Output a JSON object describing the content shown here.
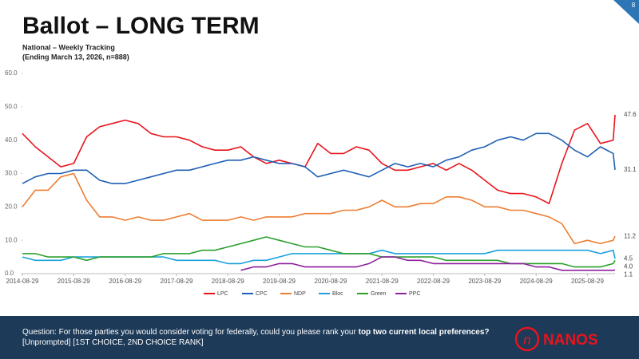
{
  "page_number": "8",
  "footer": {
    "question_start": "Question: For those parties you would consider voting for federally, could you please rank your ",
    "question_bold": "top two current local preferences?",
    "question_end": " [Unprompted] [1ST CHOICE, 2ND CHOICE RANK]",
    "logo": "NANOS"
  },
  "chart_data": {
    "type": "line",
    "title": "Ballot – LONG TERM",
    "subtitle": [
      "National – Weekly Tracking",
      "(Ending March 13, 2026, n=888)"
    ],
    "x": [
      "2014-08-29",
      "2014-11-29",
      "2015-02-28",
      "2015-05-29",
      "2015-08-29",
      "2015-11-29",
      "2016-02-29",
      "2016-05-29",
      "2016-08-29",
      "2016-11-29",
      "2017-02-28",
      "2017-05-29",
      "2017-08-29",
      "2017-11-29",
      "2018-02-28",
      "2018-05-29",
      "2018-08-29",
      "2018-11-29",
      "2019-02-28",
      "2019-05-29",
      "2019-08-29",
      "2019-11-29",
      "2020-02-29",
      "2020-05-29",
      "2020-08-29",
      "2020-11-29",
      "2021-02-28",
      "2021-05-29",
      "2021-08-29",
      "2021-11-29",
      "2022-02-28",
      "2022-05-29",
      "2022-08-29",
      "2022-11-29",
      "2023-02-28",
      "2023-05-29",
      "2023-08-29",
      "2023-11-29",
      "2024-02-29",
      "2024-05-29",
      "2024-08-29",
      "2024-11-29",
      "2025-02-28",
      "2025-05-29",
      "2025-08-29",
      "2025-11-29",
      "2026-02-28",
      "2026-03-13"
    ],
    "xlim": [
      "2014-08-29",
      "2026-03-13"
    ],
    "xticks": [
      "2014-08-29",
      "2015-08-29",
      "2016-08-29",
      "2017-08-29",
      "2018-08-29",
      "2019-08-29",
      "2020-08-29",
      "2021-08-29",
      "2022-08-29",
      "2023-08-29",
      "2024-08-29",
      "2025-08-29"
    ],
    "ylim": [
      0,
      60
    ],
    "yticks": [
      {
        "value": 0,
        "label": "0.0"
      },
      {
        "value": 10,
        "label": "10.0"
      },
      {
        "value": 20,
        "label": "20.0"
      },
      {
        "value": 30,
        "label": "30.0"
      },
      {
        "value": 40,
        "label": "40.0"
      },
      {
        "value": 50,
        "label": "50.0"
      },
      {
        "value": 60,
        "label": "60.0"
      }
    ],
    "grid": false,
    "legend": "bottom",
    "series": [
      {
        "name": "LPC",
        "color": "#e8141c",
        "values": [
          42,
          38,
          35,
          32,
          33,
          41,
          44,
          45,
          46,
          45,
          42,
          41,
          41,
          40,
          38,
          37,
          37,
          38,
          35,
          33,
          34,
          33,
          32,
          39,
          36,
          36,
          38,
          37,
          33,
          31,
          31,
          32,
          33,
          31,
          33,
          31,
          28,
          25,
          24,
          24,
          23,
          21,
          33,
          43,
          45,
          39,
          40,
          47.6
        ]
      },
      {
        "name": "CPC",
        "color": "#1f5fb4",
        "values": [
          27,
          29,
          30,
          30,
          31,
          31,
          28,
          27,
          27,
          28,
          29,
          30,
          31,
          31,
          32,
          33,
          34,
          34,
          35,
          34,
          33,
          33,
          32,
          29,
          30,
          31,
          30,
          29,
          31,
          33,
          32,
          33,
          32,
          34,
          35,
          37,
          38,
          40,
          41,
          40,
          42,
          42,
          40,
          37,
          35,
          38,
          36,
          31.1
        ]
      },
      {
        "name": "NDP",
        "color": "#ee7d31",
        "values": [
          20,
          25,
          25,
          29,
          30,
          22,
          17,
          17,
          16,
          17,
          16,
          16,
          17,
          18,
          16,
          16,
          16,
          17,
          16,
          17,
          17,
          17,
          18,
          18,
          18,
          19,
          19,
          20,
          22,
          20,
          20,
          21,
          21,
          23,
          23,
          22,
          20,
          20,
          19,
          19,
          18,
          17,
          15,
          9,
          10,
          9,
          10,
          11.2
        ]
      },
      {
        "name": "Bloc",
        "color": "#1aa0dc",
        "values": [
          5,
          4,
          4,
          4,
          5,
          5,
          5,
          5,
          5,
          5,
          5,
          5,
          4,
          4,
          4,
          4,
          3,
          3,
          4,
          4,
          5,
          6,
          6,
          6,
          6,
          6,
          6,
          6,
          7,
          6,
          6,
          6,
          6,
          6,
          6,
          6,
          6,
          7,
          7,
          7,
          7,
          7,
          7,
          7,
          7,
          6,
          7,
          4.5
        ]
      },
      {
        "name": "Green",
        "color": "#2ca02c",
        "values": [
          6,
          6,
          5,
          5,
          5,
          4,
          5,
          5,
          5,
          5,
          5,
          6,
          6,
          6,
          7,
          7,
          8,
          9,
          10,
          11,
          10,
          9,
          8,
          8,
          7,
          6,
          6,
          6,
          5,
          5,
          5,
          5,
          5,
          4,
          4,
          4,
          4,
          4,
          3,
          3,
          3,
          3,
          3,
          2,
          2,
          2,
          3,
          4.0
        ],
        "value_labels": [
          null,
          null,
          null,
          null,
          null,
          null,
          null,
          null,
          null,
          null,
          null,
          null,
          null,
          null,
          null,
          null,
          null,
          null,
          null,
          null,
          null,
          null,
          null,
          null,
          null,
          null,
          null,
          null,
          null,
          null,
          null,
          null,
          null,
          null,
          null,
          null,
          null,
          null,
          null,
          null,
          null,
          null,
          null,
          null,
          null,
          null,
          null,
          "4.0"
        ]
      },
      {
        "name": "PPC",
        "color": "#8e1f9e",
        "values": [
          null,
          null,
          null,
          null,
          null,
          null,
          null,
          null,
          null,
          null,
          null,
          null,
          null,
          null,
          null,
          null,
          null,
          1,
          2,
          2,
          3,
          3,
          2,
          2,
          2,
          2,
          2,
          3,
          5,
          5,
          4,
          4,
          3,
          3,
          3,
          3,
          3,
          3,
          3,
          3,
          2,
          2,
          1,
          1,
          1,
          1,
          1,
          1.1
        ]
      }
    ]
  }
}
